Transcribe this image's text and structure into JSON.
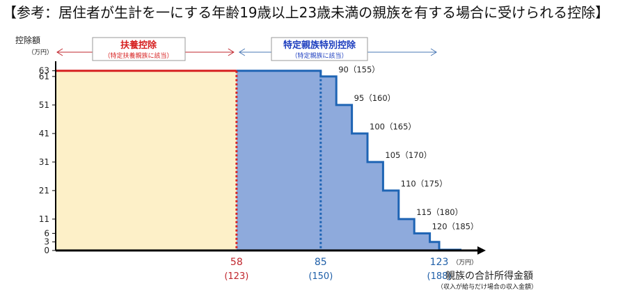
{
  "title": "【参考：居住者が生計を一にする年齢19歳以上23歳未満の親族を有する場合に受けられる控除】",
  "chart_data": {
    "type": "area",
    "ylabel": "控除額",
    "yunit": "（万円）",
    "xlabel": "親族の合計所得金額",
    "xlabel_note": "（収入が給与だけ場合の収入金額）",
    "xunit": "（万円）",
    "yticks": [
      0,
      3,
      6,
      11,
      21,
      31,
      41,
      51,
      61,
      63
    ],
    "x_markers": [
      {
        "value": 58,
        "label": "58",
        "sub": "(123)",
        "color": "#c0262d"
      },
      {
        "value": 85,
        "label": "85",
        "sub": "(150)",
        "color": "#1f5fa8"
      },
      {
        "value": 123,
        "label": "123",
        "sub": "(188)",
        "color": "#1f5fa8"
      }
    ],
    "series": [
      {
        "name": "扶養控除",
        "note": "（特定扶養親族に該当）",
        "color": "#fdf0c8",
        "line": "#d62020",
        "points": [
          [
            0,
            63
          ],
          [
            58,
            63
          ]
        ]
      },
      {
        "name": "特定親族特別控除",
        "note": "（特定親族に該当）",
        "color": "#8eaadc",
        "line": "#1e64b4",
        "points": [
          [
            58,
            63
          ],
          [
            85,
            63
          ],
          [
            85,
            61
          ],
          [
            90,
            61
          ],
          [
            90,
            51
          ],
          [
            95,
            51
          ],
          [
            95,
            41
          ],
          [
            100,
            41
          ],
          [
            100,
            31
          ],
          [
            105,
            31
          ],
          [
            105,
            21
          ],
          [
            110,
            21
          ],
          [
            110,
            11
          ],
          [
            115,
            11
          ],
          [
            115,
            6
          ],
          [
            120,
            6
          ],
          [
            120,
            3
          ],
          [
            123,
            3
          ],
          [
            123,
            0
          ]
        ]
      }
    ],
    "step_labels": [
      {
        "x": 90,
        "y": 61,
        "text": "90（155）"
      },
      {
        "x": 95,
        "y": 51,
        "text": "95（160）"
      },
      {
        "x": 100,
        "y": 41,
        "text": "100（165）"
      },
      {
        "x": 105,
        "y": 31,
        "text": "105（170）"
      },
      {
        "x": 110,
        "y": 21,
        "text": "110（175）"
      },
      {
        "x": 115,
        "y": 11,
        "text": "115（180）"
      },
      {
        "x": 120,
        "y": 6,
        "text": "120（185）"
      }
    ],
    "xlim": [
      0,
      135
    ],
    "ylim": [
      0,
      63
    ]
  }
}
